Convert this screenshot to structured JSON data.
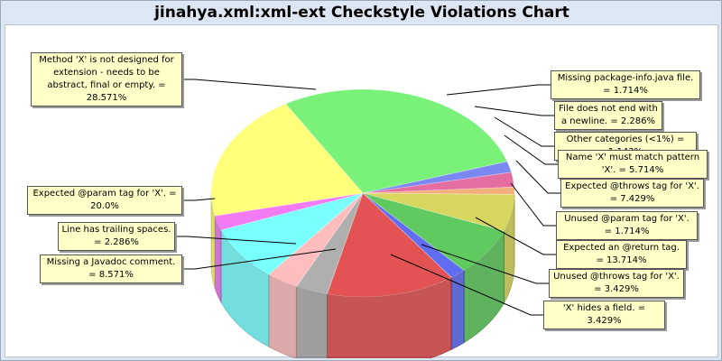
{
  "chart_data": {
    "type": "pie",
    "title": "jinahya.xml:xml-ext Checkstyle Violations Chart",
    "style": "3d",
    "slices": [
      {
        "label": "Method 'X' is not designed for extension - needs to be abstract, final or empty.",
        "value": 28.571,
        "display": "Method 'X' is not designed for extension - needs to be abstract, final or empty. = 28.571%",
        "color": "#55ee55"
      },
      {
        "label": "Missing package-info.java file.",
        "value": 1.714,
        "display": "Missing package-info.java file. = 1.714%",
        "color": "#5566ee"
      },
      {
        "label": "File does not end with a newline.",
        "value": 2.286,
        "display": "File does not end with a newline. = 2.286%",
        "color": "#dd4488"
      },
      {
        "label": "Other categories (<1%)",
        "value": 1.143,
        "display": "Other categories (<1%) = 1.143%",
        "color": "#ee9955"
      },
      {
        "label": "Name 'X' must match pattern 'X'.",
        "value": 5.714,
        "display": "Name 'X' must match pattern 'X'. = 5.714%",
        "color": "#cccc33"
      },
      {
        "label": "Expected @throws tag for 'X'.",
        "value": 7.429,
        "display": "Expected @throws tag for 'X'. = 7.429%",
        "color": "#33bb33"
      },
      {
        "label": "Unused @param tag for 'X'.",
        "value": 1.714,
        "display": "Unused @param tag for 'X'. = 1.714%",
        "color": "#3344ee"
      },
      {
        "label": "Expected an @return tag.",
        "value": 13.714,
        "display": "Expected an @return tag. = 13.714%",
        "color": "#dd2222"
      },
      {
        "label": "Unused @throws tag for 'X'.",
        "value": 3.429,
        "display": "Unused @throws tag for 'X'. = 3.429%",
        "color": "#999999"
      },
      {
        "label": "'X' hides a field.",
        "value": 3.429,
        "display": "'X' hides a field. = 3.429%",
        "color": "#ffaaaa"
      },
      {
        "label": "Missing a Javadoc comment.",
        "value": 8.571,
        "display": "Missing a Javadoc comment. = 8.571%",
        "color": "#55ffff"
      },
      {
        "label": "Line has trailing spaces.",
        "value": 2.286,
        "display": "Line has trailing spaces. = 2.286%",
        "color": "#ee55ee"
      },
      {
        "label": "Expected @param tag for 'X'.",
        "value": 20.0,
        "display": "Expected @param tag for 'X'. = 20.0%",
        "color": "#ffff55"
      }
    ]
  }
}
